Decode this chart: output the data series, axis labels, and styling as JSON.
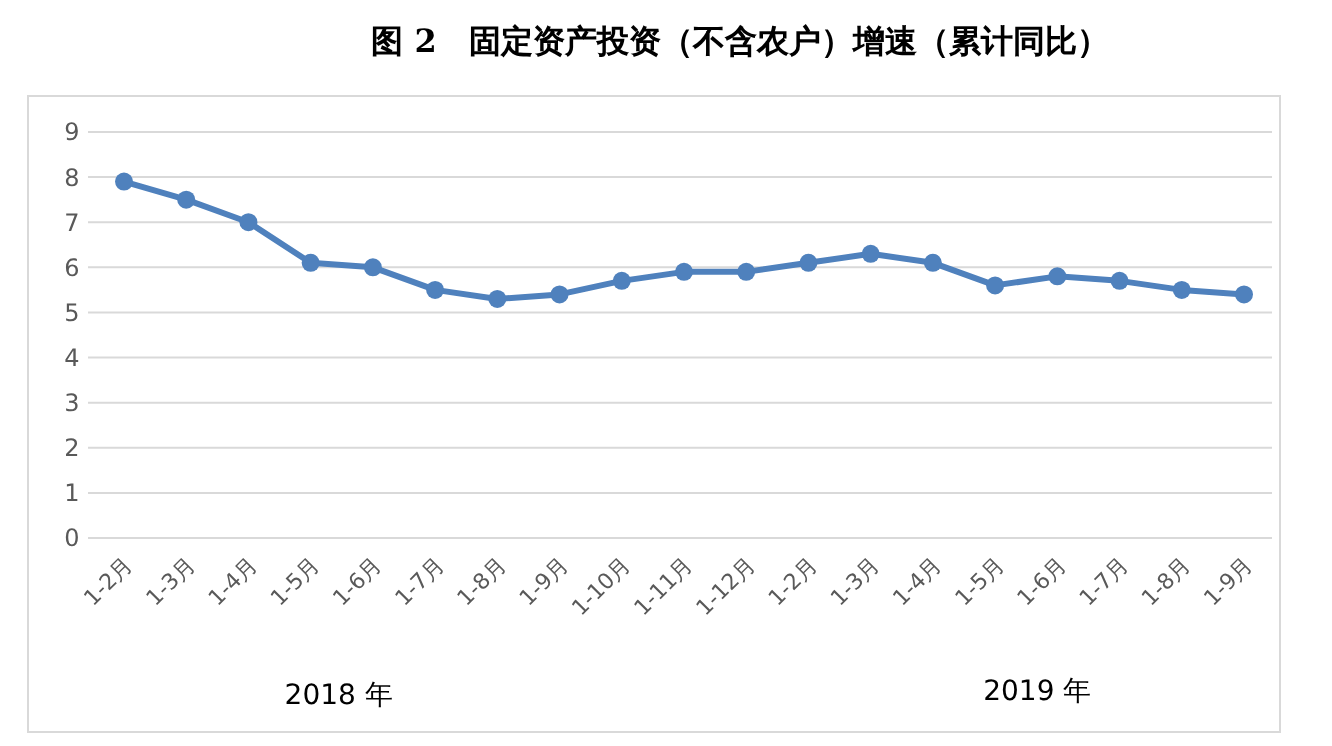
{
  "chart_data": {
    "type": "line",
    "title": "图 2　固定资产投资（不含农户）增速（累计同比）",
    "categories": [
      "1-2月",
      "1-3月",
      "1-4月",
      "1-5月",
      "1-6月",
      "1-7月",
      "1-8月",
      "1-9月",
      "1-10月",
      "1-11月",
      "1-12月",
      "1-2月",
      "1-3月",
      "1-4月",
      "1-5月",
      "1-6月",
      "1-7月",
      "1-8月",
      "1-9月"
    ],
    "series": [
      {
        "color": "#4f81bd",
        "values": [
          7.9,
          7.5,
          7.0,
          6.1,
          6.0,
          5.5,
          5.3,
          5.4,
          5.7,
          5.9,
          5.9,
          6.1,
          6.3,
          6.1,
          5.6,
          5.8,
          5.7,
          5.5,
          5.4
        ]
      }
    ],
    "ylim": [
      0,
      9
    ],
    "yticks": [
      0,
      1,
      2,
      3,
      4,
      5,
      6,
      7,
      8,
      9
    ],
    "grid": "y",
    "marker": "circle",
    "annotations": [
      "2018 年",
      "2019 年"
    ]
  }
}
